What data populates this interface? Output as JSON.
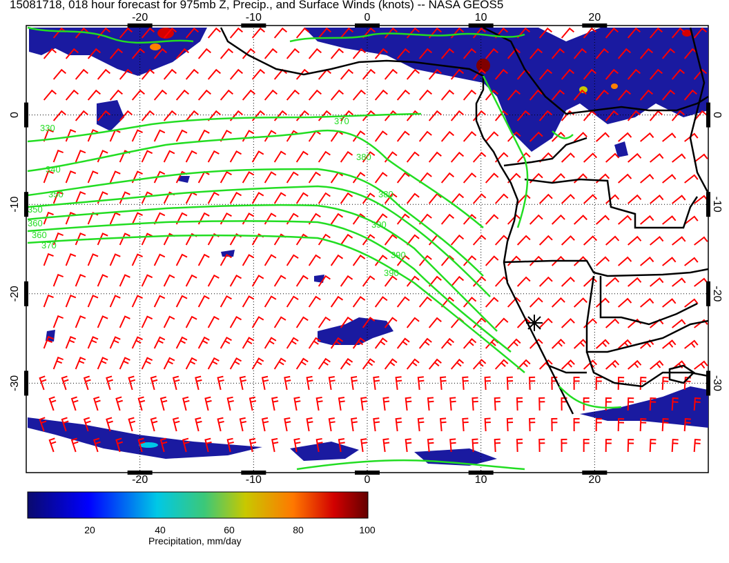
{
  "title": "15081718, 018 hour forecast for 975mb Z, Precip., and Surface Winds (knots) -- NASA GEOS5",
  "map": {
    "lon_range": [
      -30,
      30
    ],
    "lat_range": [
      -40,
      10
    ],
    "lon_ticks": [
      "-20",
      "-10",
      "0",
      "10",
      "20"
    ],
    "lat_ticks": [
      "0",
      "-10",
      "-20",
      "-30"
    ],
    "contour_color": "#22dd22",
    "barb_color": "#ff0000",
    "coast_color": "#000000",
    "contour_labels": [
      "330",
      "340",
      "350",
      "350",
      "360",
      "360",
      "370",
      "370",
      "380",
      "380",
      "390",
      "390",
      "390"
    ],
    "marker": "star",
    "marker_lon": 14.8,
    "marker_lat": -23.5
  },
  "colorbar": {
    "label": "Precipitation, mm/day",
    "ticks": [
      "20",
      "40",
      "60",
      "80",
      "100"
    ],
    "colors": [
      "#00007f",
      "#0000ff",
      "#00bfff",
      "#00d0c0",
      "#c8c800",
      "#ff8000",
      "#d40000",
      "#7f0000"
    ]
  }
}
